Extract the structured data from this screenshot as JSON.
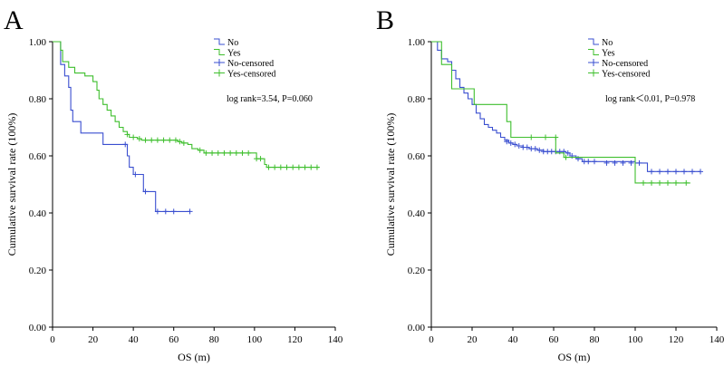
{
  "colors": {
    "no": "#3a4fd0",
    "yes": "#3fbf2e",
    "axis": "#000000"
  },
  "chart_data": [
    {
      "type": "line",
      "panel_label": "A",
      "xlabel": "OS (m)",
      "ylabel": "Cumulative survival rate (100%)",
      "xlim": [
        0,
        140
      ],
      "ylim": [
        0,
        1
      ],
      "x_ticks": [
        "0",
        "20",
        "40",
        "60",
        "80",
        "100",
        "120",
        "140"
      ],
      "y_ticks": [
        "0.00",
        "0.20",
        "0.40",
        "0.60",
        "0.80",
        "1.00"
      ],
      "legend": [
        {
          "label": "No",
          "series": "no",
          "kind": "line"
        },
        {
          "label": "Yes",
          "series": "yes",
          "kind": "line"
        },
        {
          "label": "No-censored",
          "series": "no",
          "kind": "censor"
        },
        {
          "label": "Yes-censored",
          "series": "yes",
          "kind": "censor"
        }
      ],
      "annotation": "log rank=3.54, P=0.060",
      "series": [
        {
          "name": "No",
          "key": "no",
          "steps": [
            [
              0,
              1.0
            ],
            [
              4,
              0.92
            ],
            [
              6,
              0.88
            ],
            [
              8,
              0.84
            ],
            [
              9,
              0.76
            ],
            [
              10,
              0.72
            ],
            [
              14,
              0.68
            ],
            [
              25,
              0.64
            ],
            [
              37,
              0.6
            ],
            [
              38,
              0.56
            ],
            [
              40,
              0.535
            ],
            [
              45,
              0.475
            ],
            [
              51,
              0.405
            ],
            [
              68,
              0.405
            ]
          ],
          "censor": [
            [
              36,
              0.64
            ],
            [
              41,
              0.535
            ],
            [
              46,
              0.475
            ],
            [
              52,
              0.405
            ],
            [
              56,
              0.405
            ],
            [
              60,
              0.405
            ],
            [
              68,
              0.405
            ]
          ]
        },
        {
          "name": "Yes",
          "key": "yes",
          "steps": [
            [
              0,
              1.0
            ],
            [
              4,
              0.97
            ],
            [
              5,
              0.93
            ],
            [
              8,
              0.91
            ],
            [
              11,
              0.89
            ],
            [
              16,
              0.88
            ],
            [
              20,
              0.86
            ],
            [
              22,
              0.83
            ],
            [
              23,
              0.8
            ],
            [
              25,
              0.78
            ],
            [
              27,
              0.76
            ],
            [
              29,
              0.74
            ],
            [
              31,
              0.72
            ],
            [
              33,
              0.7
            ],
            [
              35,
              0.685
            ],
            [
              37,
              0.675
            ],
            [
              38,
              0.665
            ],
            [
              42,
              0.66
            ],
            [
              44,
              0.655
            ],
            [
              62,
              0.65
            ],
            [
              64,
              0.645
            ],
            [
              67,
              0.64
            ],
            [
              69,
              0.625
            ],
            [
              72,
              0.62
            ],
            [
              75,
              0.61
            ],
            [
              101,
              0.59
            ],
            [
              105,
              0.57
            ],
            [
              106,
              0.56
            ],
            [
              132,
              0.56
            ]
          ],
          "censor": [
            [
              37,
              0.675
            ],
            [
              40,
              0.665
            ],
            [
              43,
              0.66
            ],
            [
              46,
              0.655
            ],
            [
              49,
              0.655
            ],
            [
              52,
              0.655
            ],
            [
              55,
              0.655
            ],
            [
              58,
              0.655
            ],
            [
              61,
              0.655
            ],
            [
              63,
              0.65
            ],
            [
              65,
              0.645
            ],
            [
              73,
              0.62
            ],
            [
              76,
              0.61
            ],
            [
              79,
              0.61
            ],
            [
              82,
              0.61
            ],
            [
              85,
              0.61
            ],
            [
              88,
              0.61
            ],
            [
              91,
              0.61
            ],
            [
              94,
              0.61
            ],
            [
              97,
              0.61
            ],
            [
              101,
              0.59
            ],
            [
              103,
              0.59
            ],
            [
              107,
              0.56
            ],
            [
              110,
              0.56
            ],
            [
              113,
              0.56
            ],
            [
              116,
              0.56
            ],
            [
              119,
              0.56
            ],
            [
              122,
              0.56
            ],
            [
              125,
              0.56
            ],
            [
              128,
              0.56
            ],
            [
              131,
              0.56
            ]
          ]
        }
      ]
    },
    {
      "type": "line",
      "panel_label": "B",
      "xlabel": "OS (m)",
      "ylabel": "Cumulative survival rate (100%)",
      "xlim": [
        0,
        140
      ],
      "ylim": [
        0,
        1
      ],
      "x_ticks": [
        "0",
        "20",
        "40",
        "60",
        "80",
        "100",
        "120",
        "140"
      ],
      "y_ticks": [
        "0.00",
        "0.20",
        "0.40",
        "0.60",
        "0.80",
        "1.00"
      ],
      "legend": [
        {
          "label": "No",
          "series": "no",
          "kind": "line"
        },
        {
          "label": "Yes",
          "series": "yes",
          "kind": "line"
        },
        {
          "label": "No-censored",
          "series": "no",
          "kind": "censor"
        },
        {
          "label": "Yes-censored",
          "series": "yes",
          "kind": "censor"
        }
      ],
      "annotation": "log rank＜0.01, P=0.978",
      "series": [
        {
          "name": "No",
          "key": "no",
          "steps": [
            [
              0,
              1.0
            ],
            [
              3,
              0.97
            ],
            [
              5,
              0.94
            ],
            [
              8,
              0.93
            ],
            [
              10,
              0.9
            ],
            [
              12,
              0.87
            ],
            [
              14,
              0.84
            ],
            [
              16,
              0.82
            ],
            [
              18,
              0.8
            ],
            [
              20,
              0.78
            ],
            [
              22,
              0.75
            ],
            [
              24,
              0.73
            ],
            [
              26,
              0.71
            ],
            [
              28,
              0.7
            ],
            [
              30,
              0.69
            ],
            [
              32,
              0.68
            ],
            [
              34,
              0.665
            ],
            [
              36,
              0.655
            ],
            [
              38,
              0.645
            ],
            [
              40,
              0.64
            ],
            [
              42,
              0.635
            ],
            [
              45,
              0.63
            ],
            [
              48,
              0.625
            ],
            [
              52,
              0.62
            ],
            [
              55,
              0.615
            ],
            [
              66,
              0.61
            ],
            [
              68,
              0.6
            ],
            [
              71,
              0.59
            ],
            [
              74,
              0.58
            ],
            [
              100,
              0.575
            ],
            [
              106,
              0.545
            ],
            [
              132,
              0.545
            ]
          ],
          "censor": [
            [
              37,
              0.65
            ],
            [
              39,
              0.645
            ],
            [
              41,
              0.64
            ],
            [
              43,
              0.635
            ],
            [
              45,
              0.63
            ],
            [
              47,
              0.63
            ],
            [
              49,
              0.625
            ],
            [
              51,
              0.625
            ],
            [
              53,
              0.62
            ],
            [
              55,
              0.615
            ],
            [
              57,
              0.615
            ],
            [
              59,
              0.615
            ],
            [
              61,
              0.615
            ],
            [
              63,
              0.615
            ],
            [
              65,
              0.615
            ],
            [
              67,
              0.61
            ],
            [
              69,
              0.6
            ],
            [
              72,
              0.59
            ],
            [
              75,
              0.58
            ],
            [
              77,
              0.58
            ],
            [
              80,
              0.58
            ],
            [
              86,
              0.575
            ],
            [
              90,
              0.575
            ],
            [
              94,
              0.575
            ],
            [
              98,
              0.575
            ],
            [
              102,
              0.575
            ],
            [
              108,
              0.545
            ],
            [
              112,
              0.545
            ],
            [
              116,
              0.545
            ],
            [
              120,
              0.545
            ],
            [
              124,
              0.545
            ],
            [
              128,
              0.545
            ],
            [
              132,
              0.545
            ]
          ]
        },
        {
          "name": "Yes",
          "key": "yes",
          "steps": [
            [
              0,
              1.0
            ],
            [
              5,
              0.92
            ],
            [
              10,
              0.835
            ],
            [
              21,
              0.78
            ],
            [
              37,
              0.72
            ],
            [
              39,
              0.665
            ],
            [
              61,
              0.61
            ],
            [
              65,
              0.595
            ],
            [
              100,
              0.505
            ],
            [
              127,
              0.505
            ]
          ],
          "censor": [
            [
              49,
              0.665
            ],
            [
              56,
              0.665
            ],
            [
              61,
              0.665
            ],
            [
              66,
              0.595
            ],
            [
              104,
              0.505
            ],
            [
              108,
              0.505
            ],
            [
              112,
              0.505
            ],
            [
              116,
              0.505
            ],
            [
              120,
              0.505
            ],
            [
              125,
              0.505
            ]
          ]
        }
      ]
    }
  ]
}
